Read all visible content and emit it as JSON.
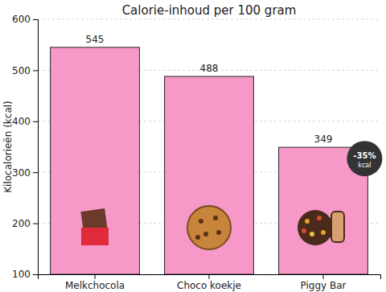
{
  "chart_data": {
    "type": "bar",
    "title": "Calorie-inhoud per 100 gram",
    "y_label": "Kilocalorieën (kcal)",
    "categories": [
      "Melkchocola",
      "Choco koekje",
      "Piggy Bar"
    ],
    "values": [
      545,
      488,
      349
    ],
    "color": "#f799c8",
    "ylim": [
      100,
      600
    ],
    "yticks": [
      100,
      200,
      300,
      400,
      500,
      600
    ],
    "grid": true,
    "data_labels": true,
    "annotations": [
      "-35%",
      "kcal"
    ]
  }
}
